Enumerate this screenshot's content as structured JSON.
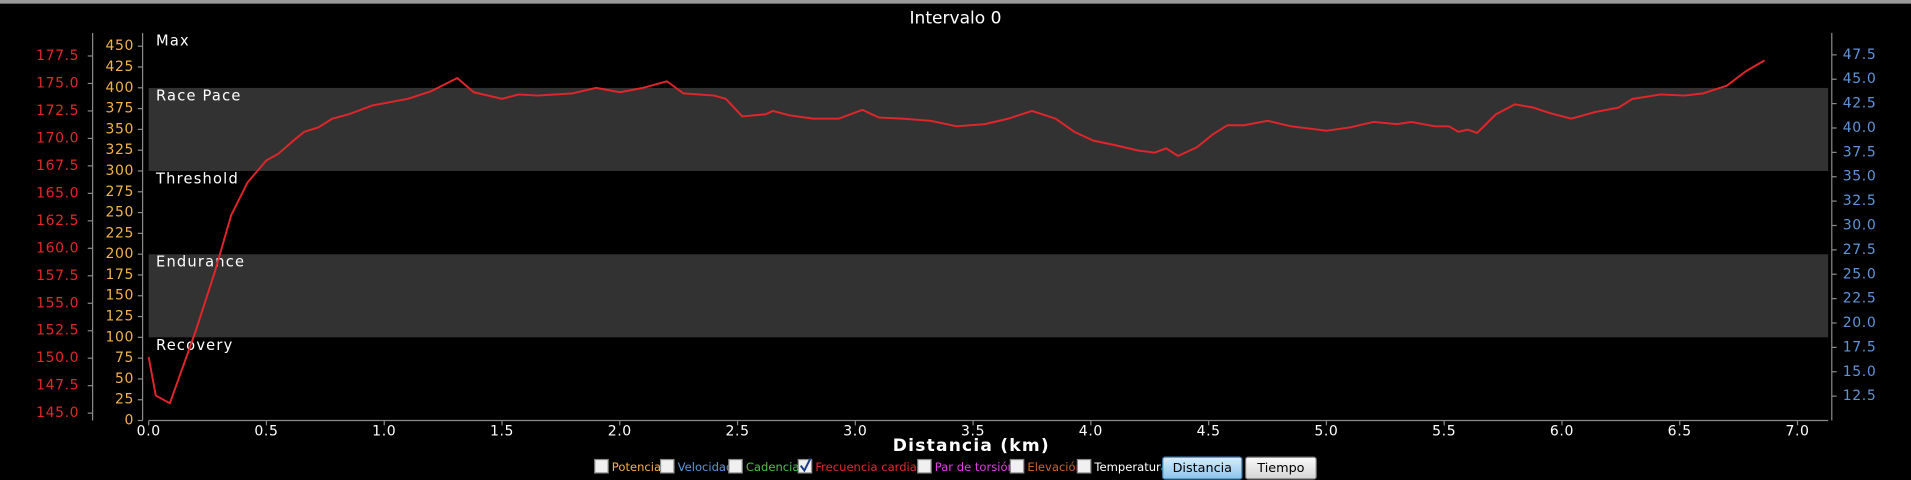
{
  "chart_data": {
    "type": "line",
    "title": "Intervalo 0",
    "xlabel": "Distancia (km)",
    "xlim": [
      0,
      7.13
    ],
    "xticks": [
      {
        "value": 0,
        "label": "0.0"
      },
      0.5,
      {
        "value": 1,
        "label": "1.0"
      },
      1.5,
      {
        "value": 2,
        "label": "2.0"
      },
      2.5,
      {
        "value": 3,
        "label": "3.0"
      },
      3.5,
      {
        "value": 4,
        "label": "4.0"
      },
      4.5,
      {
        "value": 5,
        "label": "5.0"
      },
      5.5,
      {
        "value": 6,
        "label": "6.0"
      },
      6.5,
      {
        "value": 7,
        "label": "7.0"
      }
    ],
    "ylim": [
      144.33,
      179.6
    ],
    "ycolor": "#e02a2a",
    "yticks": [
      {
        "value": 145,
        "label": "145.0"
      },
      147.5,
      {
        "value": 150,
        "label": "150.0"
      },
      152.5,
      {
        "value": 155,
        "label": "155.0"
      },
      157.5,
      {
        "value": 160,
        "label": "160.0"
      },
      162.5,
      {
        "value": 165,
        "label": "165.0"
      },
      167.5,
      {
        "value": 170,
        "label": "170.0"
      },
      172.5,
      {
        "value": 175,
        "label": "175.0"
      },
      177.5
    ],
    "power_ylim": [
      0,
      466
    ],
    "power_color": "#f2b44a",
    "power_yticks": [
      0,
      25,
      50,
      75,
      100,
      125,
      150,
      175,
      200,
      225,
      250,
      275,
      300,
      325,
      350,
      375,
      400,
      425,
      450
    ],
    "y2lim": [
      10,
      49.75
    ],
    "y2color": "#5f95d8",
    "y2ticks": [
      12.5,
      {
        "value": 15,
        "label": "15.0"
      },
      17.5,
      {
        "value": 20,
        "label": "20.0"
      },
      22.5,
      {
        "value": 25,
        "label": "25.0"
      },
      27.5,
      {
        "value": 30,
        "label": "30.0"
      },
      32.5,
      {
        "value": 35,
        "label": "35.0"
      },
      37.5,
      {
        "value": 40,
        "label": "40.0"
      },
      42.5,
      {
        "value": 45,
        "label": "45.0"
      },
      47.5
    ],
    "zones": [
      {
        "name": "Recovery",
        "from": 0,
        "to": 100,
        "shaded": false
      },
      {
        "name": "Endurance",
        "from": 100,
        "to": 200,
        "shaded": true
      },
      {
        "name": "Threshold",
        "from": 200,
        "to": 300,
        "shaded": false
      },
      {
        "name": "Race Pace",
        "from": 300,
        "to": 400,
        "shaded": true
      },
      {
        "name": "Max",
        "from": 400,
        "shaded": false
      }
    ],
    "x": [
      0.0,
      0.03,
      0.09,
      0.2,
      0.28,
      0.35,
      0.42,
      0.5,
      0.55,
      0.62,
      0.66,
      0.72,
      0.78,
      0.85,
      0.95,
      1.1,
      1.2,
      1.31,
      1.38,
      1.5,
      1.57,
      1.65,
      1.8,
      1.9,
      2.0,
      2.1,
      2.2,
      2.27,
      2.4,
      2.45,
      2.52,
      2.62,
      2.65,
      2.72,
      2.82,
      2.93,
      2.98,
      3.03,
      3.1,
      3.2,
      3.32,
      3.43,
      3.55,
      3.65,
      3.75,
      3.85,
      3.93,
      4.01,
      4.1,
      4.2,
      4.27,
      4.32,
      4.37,
      4.45,
      4.52,
      4.58,
      4.65,
      4.75,
      4.85,
      5.0,
      5.1,
      5.2,
      5.3,
      5.36,
      5.46,
      5.52,
      5.56,
      5.6,
      5.64,
      5.72,
      5.8,
      5.88,
      5.95,
      6.04,
      6.14,
      6.24,
      6.3,
      6.42,
      6.52,
      6.6,
      6.7,
      6.78,
      6.86
    ],
    "series": [
      {
        "color": "#e0262b",
        "values": [
          150.1,
          146.6,
          145.9,
          152.5,
          157.8,
          163.0,
          166.0,
          168.0,
          168.6,
          169.9,
          170.6,
          171.0,
          171.8,
          172.2,
          173.0,
          173.6,
          174.3,
          175.5,
          174.2,
          173.6,
          174.0,
          173.9,
          174.1,
          174.6,
          174.2,
          174.6,
          175.2,
          174.1,
          173.9,
          173.6,
          172.0,
          172.2,
          172.5,
          172.1,
          171.8,
          171.8,
          172.2,
          172.6,
          171.9,
          171.8,
          171.6,
          171.1,
          171.3,
          171.8,
          172.5,
          171.8,
          170.6,
          169.8,
          169.4,
          168.9,
          168.7,
          169.1,
          168.4,
          169.2,
          170.4,
          171.2,
          171.2,
          171.6,
          171.1,
          170.7,
          171.0,
          171.5,
          171.3,
          171.5,
          171.1,
          171.1,
          170.6,
          170.8,
          170.5,
          172.2,
          173.1,
          172.8,
          172.3,
          171.8,
          172.4,
          172.8,
          173.6,
          174.0,
          173.9,
          174.1,
          174.8,
          176.1,
          177.1
        ]
      }
    ],
    "legend": [
      {
        "name": "Potencia",
        "color": "#f2b44a",
        "checked": false
      },
      {
        "name": "Velocidad",
        "color": "#5f95d8",
        "checked": false
      },
      {
        "name": "Cadencia",
        "color": "#4fc04f",
        "checked": false
      },
      {
        "name": "Frecuencia cardiaca",
        "color": "#e02a2a",
        "checked": true
      },
      {
        "name": "Par de torsión",
        "color": "#e040e0",
        "checked": false
      },
      {
        "name": "Elevación",
        "color": "#c8642a",
        "checked": false
      },
      {
        "name": "Temperatura",
        "color": "#ffffff",
        "checked": false
      }
    ],
    "buttons": [
      {
        "label": "Distancia",
        "selected": true
      },
      {
        "label": "Tiempo",
        "selected": false
      }
    ]
  }
}
